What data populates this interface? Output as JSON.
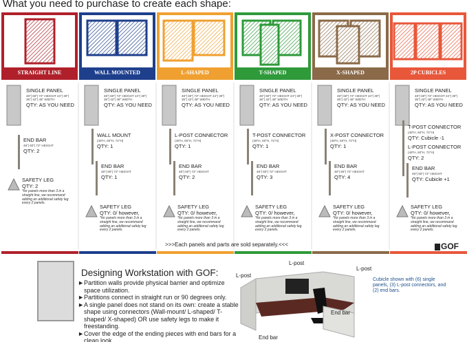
{
  "header": {
    "title": "What you need to purchase to create each shape:"
  },
  "shapes": [
    {
      "label": "STRAIGHT LINE",
      "items": [
        {
          "name": "SINGLE PANEL",
          "spec": "48\"| 60\"| 72\" HEIGHT 24\"| 30\"| 36\"| 42\"| 48\" WIDTH",
          "qty": "QTY: AS YOU NEED"
        },
        {
          "name": "END BAR",
          "spec": "48\"| 60\"| 72\" HEIGHT",
          "qty": "QTY: 2"
        },
        {
          "name": "SAFETY LEG",
          "qty": "QTY: 2",
          "note": "*for panels more than 3 in a straight line, we recommand adding an additional safety leg every 2 panels."
        }
      ]
    },
    {
      "label": "WALL MOUNTED",
      "items": [
        {
          "name": "SINGLE PANEL",
          "spec": "48\"| 60\"| 72\" HEIGHT 24\"| 30\"| 36\"| 42\"| 48\" WIDTH",
          "qty": "QTY: AS YOU NEED"
        },
        {
          "name": "WALL MOUNT",
          "spec": "(48\"H, 60\"H, 72\"H)",
          "qty": "QTY: 1"
        },
        {
          "name": "END BAR",
          "spec": "48\"| 60\"| 72\" HEIGHT",
          "qty": "QTY: 1"
        },
        {
          "name": "SAFETY LEG",
          "qty": "QTY: 0/ however,",
          "note": "*for panels more than 3 in a straight line, we recommand adding an additional safety leg every 2 panels."
        }
      ]
    },
    {
      "label": "L-SHAPED",
      "items": [
        {
          "name": "SINGLE PANEL",
          "spec": "48\"| 60\"| 72\" HEIGHT 24\"| 30\"| 36\"| 42\"| 48\" WIDTH",
          "qty": "QTY: AS YOU NEED"
        },
        {
          "name": "L-POST CONNECTOR",
          "spec": "(48\"H, 60\"H, 72\"H)",
          "qty": "QTY: 1"
        },
        {
          "name": "END BAR",
          "spec": "48\"| 60\"| 72\" HEIGHT",
          "qty": "QTY: 2"
        },
        {
          "name": "SAFETY LEG",
          "qty": "QTY: 0/ however,",
          "note": "*for panels more than 3 in a straight line, we recommand adding an additional safety leg every 2 panels."
        }
      ]
    },
    {
      "label": "T-SHAPED",
      "items": [
        {
          "name": "SINGLE PANEL",
          "spec": "48\"| 60\"| 72\" HEIGHT 24\"| 30\"| 36\"| 42\"| 48\" WIDTH",
          "qty": "QTY: AS YOU NEED"
        },
        {
          "name": "T-POST CONNECTOR",
          "spec": "(48\"H, 60\"H, 72\"H)",
          "qty": "QTY: 1"
        },
        {
          "name": "END BAR",
          "spec": "48\"| 60\"| 72\" HEIGHT",
          "qty": "QTY: 3"
        },
        {
          "name": "SAFETY LEG",
          "qty": "QTY: 0/ however,",
          "note": "*for panels more than 3 in a straight line, we recommand adding an additional safety leg every 2 panels."
        }
      ]
    },
    {
      "label": "X-SHAPED",
      "items": [
        {
          "name": "SINGLE PANEL",
          "spec": "48\"| 60\"| 72\" HEIGHT 24\"| 30\"| 36\"| 42\"| 48\" WIDTH",
          "qty": "QTY: AS YOU NEED"
        },
        {
          "name": "X-POST CONNECTOR",
          "spec": "(48\"H, 60\"H, 72\"H)",
          "qty": "QTY: 1"
        },
        {
          "name": "END BAR",
          "spec": "48\"| 60\"| 72\" HEIGHT",
          "qty": "QTY: 4"
        },
        {
          "name": "SAFETY LEG",
          "qty": "QTY: 0/ however,",
          "note": "*for panels more than 3 in a straight line, we recommand adding an additional safety leg every 2 panels."
        }
      ]
    },
    {
      "label": "2P CUBICLES",
      "items": [
        {
          "name": "SINGLE PANEL",
          "spec": "48\"| 60\"| 72\" HEIGHT 24\"| 30\"| 36\"| 42\"| 48\" WIDTH",
          "qty": "QTY: AS YOU NEED"
        },
        {
          "name": "T-POST CONNECTOR",
          "spec": "(48\"H, 60\"H, 72\"H)",
          "qty": "QTY: Cubicle -1"
        },
        {
          "name": "L-POST CONNECTOR",
          "spec": "(48\"H, 60\"H, 72\"H)",
          "qty": "QTY: 2"
        },
        {
          "name": "END BAR",
          "spec": "48\"| 60\"| 72\" HEIGHT",
          "qty": "QTY: Cubicle +1"
        },
        {
          "name": "SAFETY LEG",
          "qty": "QTY: 0/ however,",
          "note": "*for panels more than 3 in a straight line, we recommand adding an additional safety leg every 2 panels."
        }
      ]
    }
  ],
  "notice": ">>>Each panels and parts are sold separately.<<<",
  "logo": "GOF",
  "design": {
    "title": "Designing Workstation with GOF:",
    "bullets": [
      "Partition walls provide physical barrier and optimize space utilization.",
      "Partitions connect in straight run or 90 degrees only.",
      "A single panel does not stand on its own: create a stable shape using connectors (Wall-mount/ L-shaped/ T-shaped/ X-shaped) OR use safety legs to make it freestanding.",
      "Cover the edge of the ending pieces with end bars for a clean look."
    ],
    "labels": [
      "L-post",
      "L-post",
      "L-post",
      "End bar",
      "End bar"
    ],
    "caption": "Cubicle shown with (6) single panels, (3) L-post connectors, and (2) end bars."
  }
}
